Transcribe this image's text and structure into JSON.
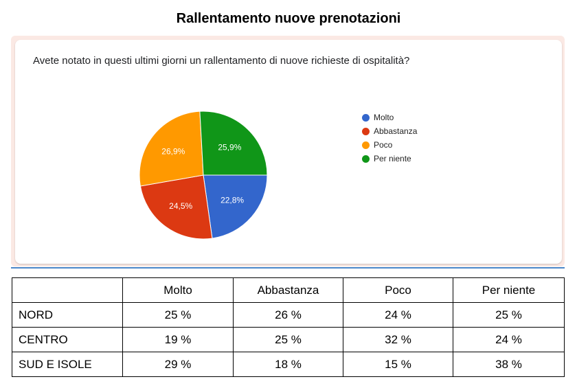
{
  "page_title": "Rallentamento nuove prenotazioni",
  "question": "Avete notato in questi ultimi giorni un rallentamento di nuove richieste di ospitalità?",
  "chart_data": {
    "type": "pie",
    "slices": [
      {
        "label": "Molto",
        "value": 22.8,
        "display": "22,8%",
        "color": "#3366cc"
      },
      {
        "label": "Abbastanza",
        "value": 24.5,
        "display": "24,5%",
        "color": "#dc3912"
      },
      {
        "label": "Poco",
        "value": 26.9,
        "display": "26,9%",
        "color": "#ff9900"
      },
      {
        "label": "Per niente",
        "value": 25.9,
        "display": "25,9%",
        "color": "#109618"
      }
    ],
    "legend_position": "right"
  },
  "table": {
    "headers": [
      "",
      "Molto",
      "Abbastanza",
      "Poco",
      "Per niente"
    ],
    "rows": [
      {
        "region": "NORD",
        "values": [
          "25 %",
          "26 %",
          "24 %",
          "25 %"
        ]
      },
      {
        "region": "CENTRO",
        "values": [
          "19 %",
          "25 %",
          "32 %",
          "24 %"
        ]
      },
      {
        "region": "SUD E ISOLE",
        "values": [
          "29 %",
          "18 %",
          "15 %",
          "38 %"
        ]
      }
    ]
  }
}
